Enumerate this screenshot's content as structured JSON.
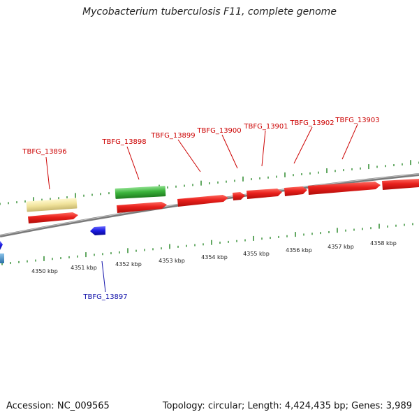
{
  "title": "Mycobacterium tuberculosis F11, complete genome",
  "footer": {
    "accession_label": "Accession:",
    "accession": "NC_009565",
    "topology_label": "Topology:",
    "topology": "circular",
    "length_label": "Length:",
    "length": "4,424,435 bp",
    "genes_label": "Genes:",
    "genes": "3,989"
  },
  "scale": {
    "unit": "kbp",
    "ticks": [
      4350,
      4351,
      4352,
      4353,
      4354,
      4355,
      4356,
      4357,
      4358
    ]
  },
  "genes_forward": [
    "TBFG_13896",
    "TBFG_13898",
    "TBFG_13899",
    "TBFG_13900",
    "TBFG_13901",
    "TBFG_13902",
    "TBFG_13903"
  ],
  "genes_reverse": [
    "TBFG_13897"
  ],
  "colors": {
    "backbone": "#8c8c8c",
    "forward_cds": "#e8201c",
    "reverse_cds": "#1a1ae0",
    "reverse_cds_alt": "#3a8ac8",
    "rna": "#3cb43c",
    "misc_feature": "#f0e29a",
    "tick": "#2e8b2e",
    "label_forward": "#cc0000",
    "label_reverse": "#1111aa"
  }
}
